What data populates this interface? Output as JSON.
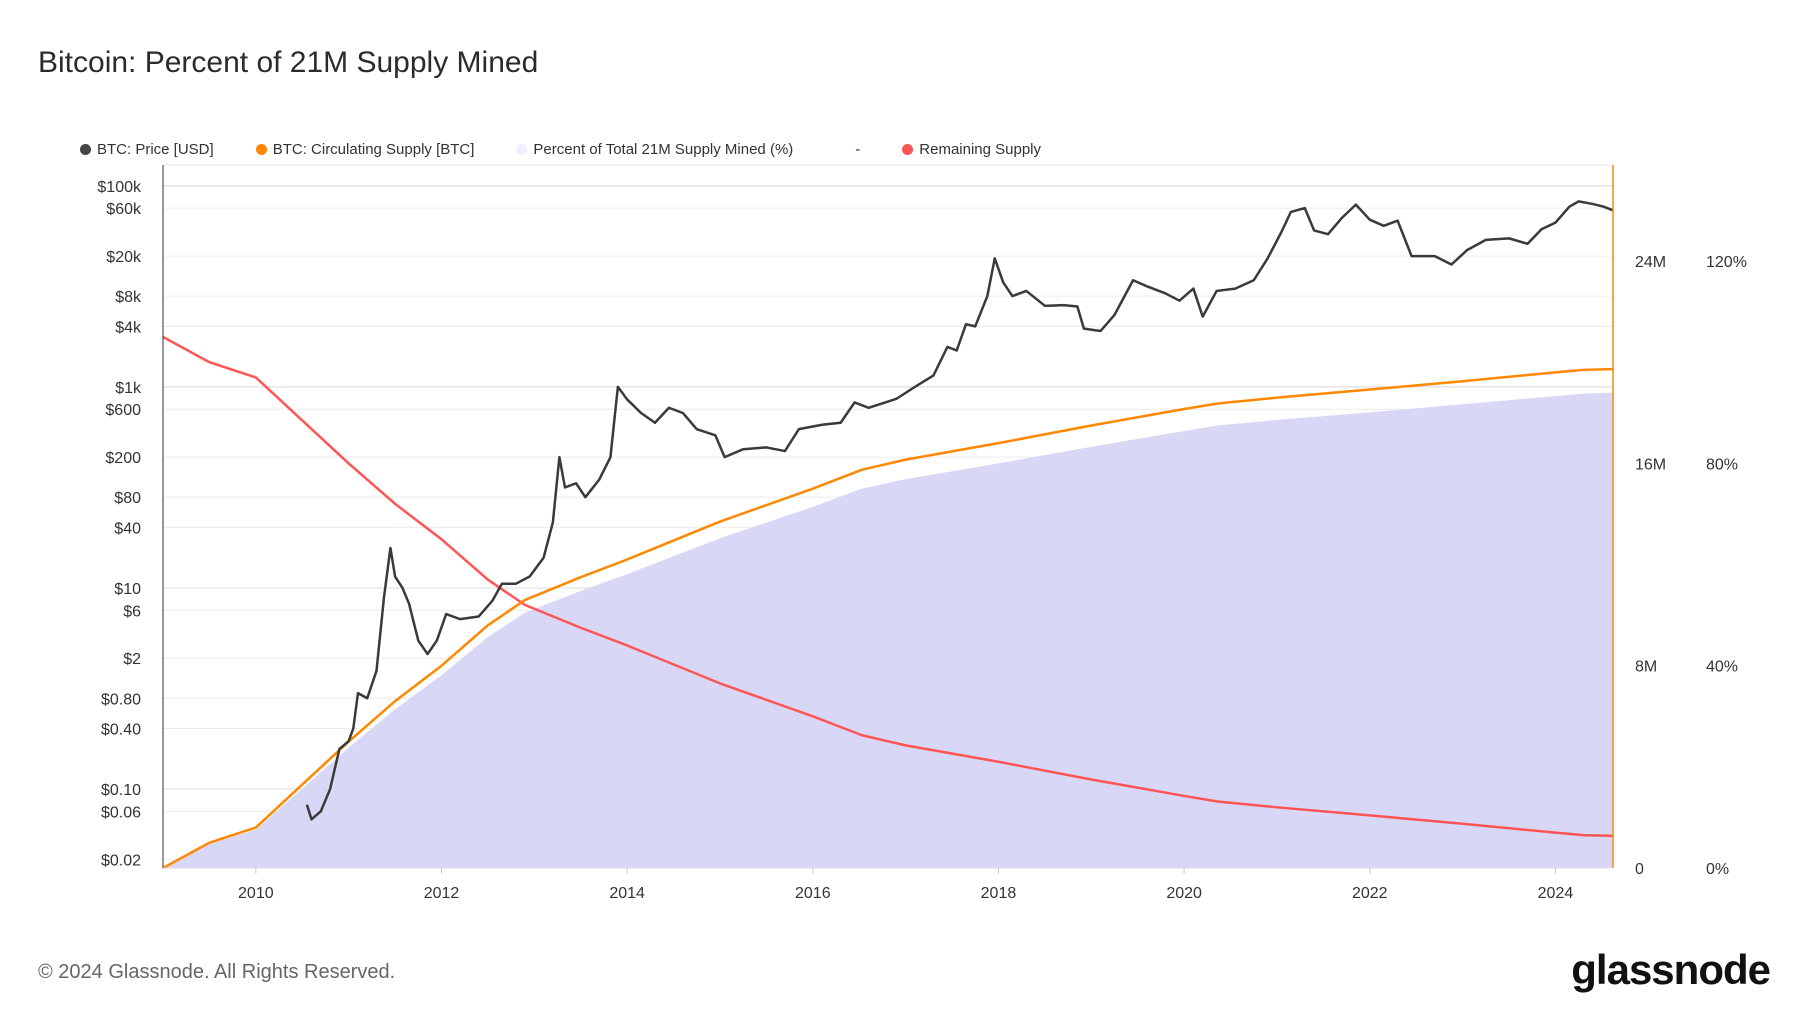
{
  "title": "Bitcoin: Percent of 21M Supply Mined",
  "footer": "© 2024 Glassnode. All Rights Reserved.",
  "logo": "glassnode",
  "legend": [
    {
      "label": "BTC: Price [USD]",
      "color": "#444444"
    },
    {
      "label": "BTC: Circulating Supply [BTC]",
      "color": "#ff8800"
    },
    {
      "label": "Percent of Total 21M Supply Mined (%)",
      "color": "#eeeefc"
    },
    {
      "label": "-",
      "color": ""
    },
    {
      "label": "Remaining Supply",
      "color": "#ff5555"
    }
  ],
  "chart_data": {
    "type": "line",
    "title": "Bitcoin: Percent of 21M Supply Mined",
    "x_range": [
      2009.0,
      2024.62
    ],
    "x_ticks": [
      "2010",
      "2012",
      "2014",
      "2016",
      "2018",
      "2020",
      "2022",
      "2024"
    ],
    "y_left": {
      "scale": "log",
      "range": [
        0.0164,
        161000
      ],
      "ticks": [
        {
          "v": 100000,
          "l": "$100k"
        },
        {
          "v": 60000,
          "l": "$60k"
        },
        {
          "v": 20000,
          "l": "$20k"
        },
        {
          "v": 8000,
          "l": "$8k"
        },
        {
          "v": 4000,
          "l": "$4k"
        },
        {
          "v": 1000,
          "l": "$1k"
        },
        {
          "v": 600,
          "l": "$600"
        },
        {
          "v": 200,
          "l": "$200"
        },
        {
          "v": 80,
          "l": "$80"
        },
        {
          "v": 40,
          "l": "$40"
        },
        {
          "v": 10,
          "l": "$10"
        },
        {
          "v": 6,
          "l": "$6"
        },
        {
          "v": 2,
          "l": "$2"
        },
        {
          "v": 0.8,
          "l": "$0.80"
        },
        {
          "v": 0.4,
          "l": "$0.40"
        },
        {
          "v": 0.1,
          "l": "$0.10"
        },
        {
          "v": 0.06,
          "l": "$0.06"
        },
        {
          "v": 0.02,
          "l": "$0.02"
        }
      ]
    },
    "y_right_supply": {
      "range": [
        0,
        27.8
      ],
      "unit": "M",
      "ticks": [
        {
          "v": 0,
          "l": "0"
        },
        {
          "v": 8,
          "l": "8M"
        },
        {
          "v": 16,
          "l": "16M"
        },
        {
          "v": 24,
          "l": "24M"
        }
      ]
    },
    "y_right_percent": {
      "range": [
        0,
        139
      ],
      "ticks": [
        {
          "v": 0,
          "l": "0%"
        },
        {
          "v": 40,
          "l": "40%"
        },
        {
          "v": 80,
          "l": "80%"
        },
        {
          "v": 120,
          "l": "120%"
        }
      ]
    },
    "grid": true,
    "legend_position": "top-left",
    "series": [
      {
        "name": "BTC: Price [USD]",
        "axis": "left",
        "color": "#3a3a3a",
        "points": [
          [
            2010.55,
            0.07
          ],
          [
            2010.6,
            0.05
          ],
          [
            2010.7,
            0.06
          ],
          [
            2010.8,
            0.1
          ],
          [
            2010.9,
            0.25
          ],
          [
            2011.0,
            0.3
          ],
          [
            2011.05,
            0.4
          ],
          [
            2011.1,
            0.9
          ],
          [
            2011.2,
            0.8
          ],
          [
            2011.3,
            1.5
          ],
          [
            2011.38,
            8
          ],
          [
            2011.45,
            25
          ],
          [
            2011.5,
            13
          ],
          [
            2011.58,
            10
          ],
          [
            2011.65,
            7
          ],
          [
            2011.75,
            3
          ],
          [
            2011.85,
            2.2
          ],
          [
            2011.95,
            3
          ],
          [
            2012.05,
            5.5
          ],
          [
            2012.2,
            4.9
          ],
          [
            2012.4,
            5.2
          ],
          [
            2012.55,
            7.5
          ],
          [
            2012.65,
            11
          ],
          [
            2012.8,
            11
          ],
          [
            2012.95,
            13
          ],
          [
            2013.1,
            20
          ],
          [
            2013.2,
            45
          ],
          [
            2013.27,
            200
          ],
          [
            2013.33,
            100
          ],
          [
            2013.45,
            110
          ],
          [
            2013.55,
            80
          ],
          [
            2013.7,
            120
          ],
          [
            2013.82,
            200
          ],
          [
            2013.9,
            1000
          ],
          [
            2014.0,
            750
          ],
          [
            2014.15,
            550
          ],
          [
            2014.3,
            440
          ],
          [
            2014.45,
            620
          ],
          [
            2014.6,
            550
          ],
          [
            2014.75,
            380
          ],
          [
            2014.95,
            330
          ],
          [
            2015.05,
            200
          ],
          [
            2015.25,
            240
          ],
          [
            2015.5,
            250
          ],
          [
            2015.7,
            230
          ],
          [
            2015.85,
            380
          ],
          [
            2016.1,
            420
          ],
          [
            2016.3,
            440
          ],
          [
            2016.45,
            700
          ],
          [
            2016.6,
            620
          ],
          [
            2016.9,
            760
          ],
          [
            2017.1,
            1000
          ],
          [
            2017.3,
            1300
          ],
          [
            2017.45,
            2500
          ],
          [
            2017.55,
            2300
          ],
          [
            2017.65,
            4200
          ],
          [
            2017.75,
            4000
          ],
          [
            2017.88,
            8000
          ],
          [
            2017.96,
            19000
          ],
          [
            2018.05,
            11000
          ],
          [
            2018.15,
            8000
          ],
          [
            2018.3,
            9000
          ],
          [
            2018.5,
            6400
          ],
          [
            2018.7,
            6500
          ],
          [
            2018.85,
            6300
          ],
          [
            2018.92,
            3800
          ],
          [
            2019.1,
            3600
          ],
          [
            2019.25,
            5200
          ],
          [
            2019.45,
            11500
          ],
          [
            2019.6,
            10000
          ],
          [
            2019.8,
            8500
          ],
          [
            2019.95,
            7200
          ],
          [
            2020.1,
            9500
          ],
          [
            2020.2,
            5000
          ],
          [
            2020.35,
            9000
          ],
          [
            2020.55,
            9500
          ],
          [
            2020.75,
            11500
          ],
          [
            2020.9,
            19000
          ],
          [
            2021.05,
            35000
          ],
          [
            2021.15,
            55000
          ],
          [
            2021.3,
            60000
          ],
          [
            2021.4,
            36000
          ],
          [
            2021.55,
            33000
          ],
          [
            2021.7,
            48000
          ],
          [
            2021.85,
            65000
          ],
          [
            2022.0,
            46000
          ],
          [
            2022.15,
            40000
          ],
          [
            2022.3,
            45000
          ],
          [
            2022.45,
            20000
          ],
          [
            2022.7,
            20000
          ],
          [
            2022.88,
            16500
          ],
          [
            2023.05,
            23000
          ],
          [
            2023.25,
            29000
          ],
          [
            2023.5,
            30000
          ],
          [
            2023.7,
            26500
          ],
          [
            2023.85,
            37000
          ],
          [
            2024.0,
            43000
          ],
          [
            2024.15,
            62000
          ],
          [
            2024.25,
            70000
          ],
          [
            2024.4,
            66000
          ],
          [
            2024.52,
            62000
          ],
          [
            2024.62,
            57000
          ]
        ]
      },
      {
        "name": "BTC: Circulating Supply [BTC]",
        "axis": "right_supply",
        "color": "#ff8800",
        "points": [
          [
            2009.0,
            0
          ],
          [
            2009.5,
            1.0
          ],
          [
            2010.0,
            1.6
          ],
          [
            2010.5,
            3.3
          ],
          [
            2011.0,
            5.0
          ],
          [
            2011.5,
            6.6
          ],
          [
            2012.0,
            8.0
          ],
          [
            2012.5,
            9.6
          ],
          [
            2012.9,
            10.6
          ],
          [
            2013.5,
            11.5
          ],
          [
            2014.0,
            12.2
          ],
          [
            2015.0,
            13.7
          ],
          [
            2016.0,
            15.0
          ],
          [
            2016.53,
            15.75
          ],
          [
            2017.0,
            16.15
          ],
          [
            2018.0,
            16.8
          ],
          [
            2019.0,
            17.5
          ],
          [
            2020.0,
            18.15
          ],
          [
            2020.36,
            18.37
          ],
          [
            2021.0,
            18.6
          ],
          [
            2022.0,
            18.92
          ],
          [
            2023.0,
            19.25
          ],
          [
            2024.0,
            19.6
          ],
          [
            2024.3,
            19.7
          ],
          [
            2024.62,
            19.73
          ]
        ]
      },
      {
        "name": "Percent of Total 21M Supply Mined (%)",
        "axis": "right_percent",
        "type": "area",
        "color": "#d6d6f5",
        "points": [
          [
            2009.0,
            0
          ],
          [
            2009.5,
            4.8
          ],
          [
            2010.0,
            7.6
          ],
          [
            2010.5,
            15.7
          ],
          [
            2011.0,
            23.8
          ],
          [
            2011.5,
            31.4
          ],
          [
            2012.0,
            38.1
          ],
          [
            2012.5,
            45.7
          ],
          [
            2012.9,
            50.5
          ],
          [
            2013.5,
            54.8
          ],
          [
            2014.0,
            58.1
          ],
          [
            2015.0,
            65.2
          ],
          [
            2016.0,
            71.4
          ],
          [
            2016.53,
            75.0
          ],
          [
            2017.0,
            76.9
          ],
          [
            2018.0,
            80.0
          ],
          [
            2019.0,
            83.3
          ],
          [
            2020.0,
            86.4
          ],
          [
            2020.36,
            87.5
          ],
          [
            2021.0,
            88.6
          ],
          [
            2022.0,
            90.1
          ],
          [
            2023.0,
            91.7
          ],
          [
            2024.0,
            93.3
          ],
          [
            2024.3,
            93.8
          ],
          [
            2024.62,
            94.0
          ]
        ]
      },
      {
        "name": "Remaining Supply",
        "axis": "right_supply",
        "color": "#ff5555",
        "points": [
          [
            2009.0,
            21.0
          ],
          [
            2009.5,
            20.0
          ],
          [
            2010.0,
            19.4
          ],
          [
            2010.5,
            17.7
          ],
          [
            2011.0,
            16.0
          ],
          [
            2011.5,
            14.4
          ],
          [
            2012.0,
            13.0
          ],
          [
            2012.5,
            11.4
          ],
          [
            2012.9,
            10.4
          ],
          [
            2013.5,
            9.5
          ],
          [
            2014.0,
            8.8
          ],
          [
            2015.0,
            7.3
          ],
          [
            2016.0,
            6.0
          ],
          [
            2016.53,
            5.25
          ],
          [
            2017.0,
            4.85
          ],
          [
            2018.0,
            4.2
          ],
          [
            2019.0,
            3.5
          ],
          [
            2020.0,
            2.85
          ],
          [
            2020.36,
            2.63
          ],
          [
            2021.0,
            2.4
          ],
          [
            2022.0,
            2.08
          ],
          [
            2023.0,
            1.75
          ],
          [
            2024.0,
            1.4
          ],
          [
            2024.3,
            1.3
          ],
          [
            2024.62,
            1.27
          ]
        ]
      }
    ]
  }
}
